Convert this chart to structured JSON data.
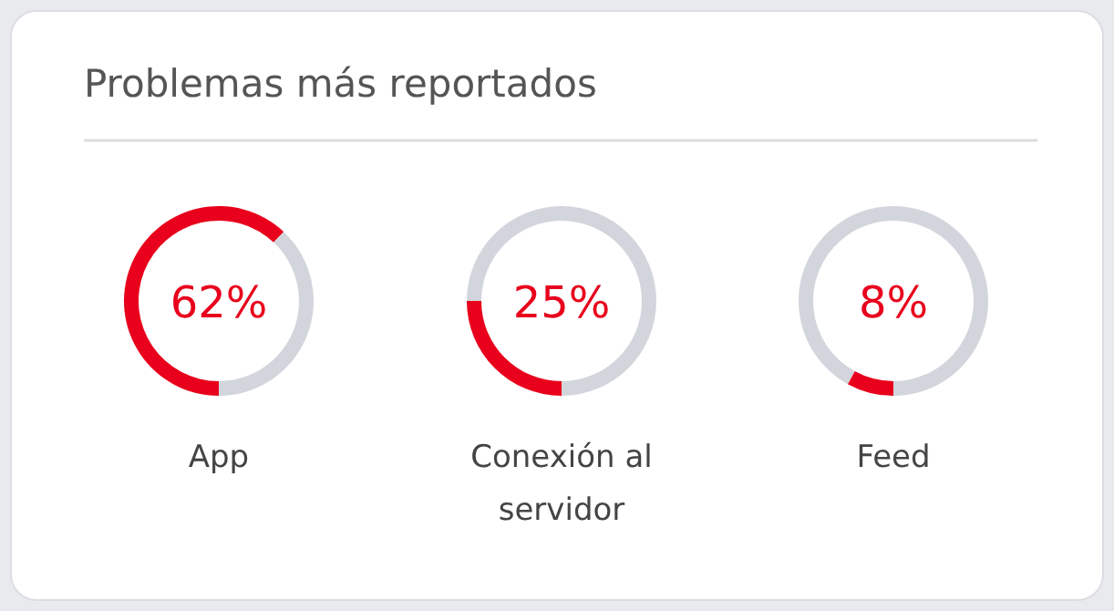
{
  "chart_data": [
    {
      "type": "donut",
      "title": "Problemas más reportados",
      "categories": [
        "App",
        null
      ],
      "values": [
        62,
        38
      ],
      "colors": [
        "#e8001c",
        "#d3d5dc"
      ],
      "value_labels": [
        "62%",
        null
      ]
    },
    {
      "type": "donut",
      "categories": [
        "Conexión al servidor",
        null
      ],
      "values": [
        25,
        75
      ],
      "colors": [
        "#e8001c",
        "#d3d5dc"
      ],
      "value_labels": [
        "25%",
        null
      ]
    },
    {
      "type": "donut",
      "categories": [
        "Feed",
        null
      ],
      "values": [
        8,
        92
      ],
      "colors": [
        "#e8001c",
        "#d3d5dc"
      ],
      "value_labels": [
        "8%",
        null
      ]
    }
  ]
}
